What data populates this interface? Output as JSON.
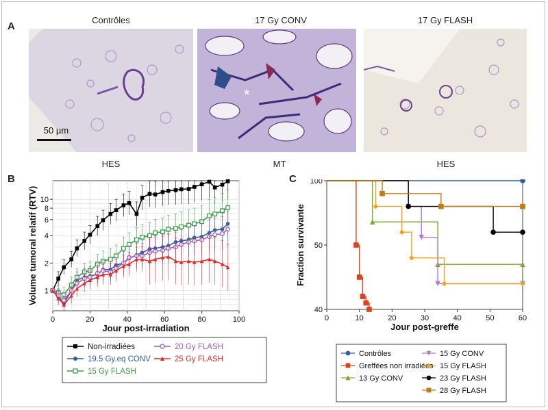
{
  "panel_a": {
    "label": "A",
    "titles": [
      "Contrôles",
      "17 Gy CONV",
      "17 Gy FLASH"
    ],
    "stains": [
      "HES",
      "MT",
      "HES"
    ],
    "scalebar": "50 µm",
    "asterisk": "*"
  },
  "panel_b": {
    "label": "B"
  },
  "panel_c": {
    "label": "C"
  },
  "colors": {
    "tissue_lilac": "#c9bede",
    "tissue_bg": "#e8e4dc",
    "black": "#000000",
    "blue": "#2b5fa7",
    "green": "#3aa047",
    "purple": "#a05cc0",
    "red": "#e02b2b",
    "ctrl_blue": "#2e5ea8",
    "sq_red": "#d9431e",
    "olive": "#7aaa28",
    "lavender": "#b27ad0",
    "orange": "#f0a020",
    "brown": "#c77a12"
  },
  "chart_data": [
    {
      "type": "line",
      "xlabel": "Jour post-irradiation",
      "ylabel": "Volume tumoral relatif (RTV)",
      "xlim": [
        0,
        100
      ],
      "ylim": [
        0.6,
        16
      ],
      "yscale": "log",
      "xticks": [
        "0",
        "20",
        "40",
        "60",
        "80",
        "100"
      ],
      "yticks": [
        "1",
        "2",
        "4",
        "6",
        "8",
        "10"
      ],
      "grid": true,
      "legend_position": "below",
      "series": [
        {
          "name": "Non-irradiées",
          "color": "#000000",
          "marker": "filled-square",
          "x": [
            0,
            3,
            6,
            10,
            13,
            17,
            20,
            24,
            27,
            31,
            34,
            38,
            41,
            45,
            48,
            52,
            55,
            59,
            62,
            66,
            69,
            73,
            76,
            80,
            84,
            87,
            91,
            94
          ],
          "y": [
            1,
            1.35,
            1.8,
            2.2,
            2.9,
            3.5,
            4.1,
            5.1,
            5.9,
            6.9,
            7.6,
            8.6,
            9.1,
            6.9,
            10.4,
            11.5,
            11.3,
            12.0,
            12.4,
            12.6,
            12.9,
            13.0,
            13.7,
            14.6,
            15.6,
            13.5,
            14.5,
            15.8
          ]
        },
        {
          "name": "19.5 Gy.eq CONV",
          "color": "#2b5fa7",
          "marker": "filled-circle",
          "x": [
            0,
            3,
            6,
            10,
            13,
            17,
            20,
            24,
            27,
            31,
            34,
            38,
            41,
            45,
            48,
            52,
            55,
            59,
            62,
            66,
            69,
            73,
            76,
            80,
            84,
            87,
            91,
            94
          ],
          "y": [
            1,
            0.85,
            0.72,
            1.0,
            1.3,
            1.4,
            1.45,
            1.5,
            1.7,
            1.7,
            1.9,
            2.0,
            2.25,
            2.45,
            2.6,
            2.85,
            2.9,
            3.0,
            3.1,
            3.4,
            3.5,
            3.6,
            3.8,
            3.9,
            4.3,
            4.6,
            4.7,
            5.4
          ]
        },
        {
          "name": "15 Gy FLASH",
          "color": "#3aa047",
          "marker": "open-square",
          "x": [
            0,
            3,
            6,
            10,
            13,
            17,
            20,
            24,
            27,
            31,
            34,
            38,
            41,
            45,
            48,
            52,
            55,
            59,
            62,
            66,
            69,
            73,
            76,
            80,
            84,
            87,
            91,
            94
          ],
          "y": [
            1,
            0.95,
            0.9,
            1.15,
            1.4,
            1.6,
            1.65,
            1.95,
            2.1,
            2.2,
            2.4,
            2.9,
            3.2,
            3.6,
            3.85,
            4.0,
            4.3,
            4.4,
            4.7,
            4.8,
            5.0,
            5.2,
            5.4,
            5.7,
            6.6,
            6.9,
            7.5,
            8.1
          ]
        },
        {
          "name": "20 Gy FLASH",
          "color": "#a05cc0",
          "marker": "open-circle",
          "x": [
            0,
            3,
            6,
            10,
            13,
            17,
            20,
            24,
            27,
            31,
            34,
            38,
            41,
            45,
            48,
            52,
            55,
            59,
            62,
            66,
            69,
            73,
            76,
            80,
            84,
            87,
            91,
            94
          ],
          "y": [
            1,
            0.88,
            0.78,
            1.0,
            1.2,
            1.35,
            1.4,
            1.55,
            1.65,
            1.6,
            1.75,
            2.0,
            2.3,
            2.4,
            2.4,
            2.6,
            2.7,
            2.75,
            2.9,
            3.0,
            3.2,
            3.4,
            3.5,
            3.6,
            3.9,
            4.1,
            4.2,
            4.7
          ]
        },
        {
          "name": "25 Gy FLASH",
          "color": "#e02b2b",
          "marker": "triangle",
          "x": [
            0,
            3,
            6,
            10,
            13,
            17,
            20,
            24,
            27,
            31,
            34,
            38,
            41,
            45,
            48,
            52,
            55,
            59,
            62,
            66,
            69,
            73,
            76,
            80,
            84,
            87,
            91,
            94
          ],
          "y": [
            1,
            0.82,
            0.7,
            0.88,
            1.05,
            1.2,
            1.3,
            1.4,
            1.5,
            1.5,
            1.65,
            1.85,
            1.95,
            2.2,
            2.2,
            2.1,
            2.2,
            2.3,
            2.35,
            2.1,
            2.05,
            2.1,
            2.05,
            2.1,
            2.2,
            2.1,
            1.95,
            1.8
          ]
        }
      ]
    },
    {
      "type": "line",
      "step": true,
      "xlabel": "Jour post-greffe",
      "ylabel": "Fraction survivante",
      "xlim": [
        0,
        60
      ],
      "ylim": [
        40,
        100
      ],
      "xticks": [
        "0",
        "10",
        "20",
        "30",
        "40",
        "50",
        "60"
      ],
      "yticks": [
        "40",
        "50",
        "100"
      ],
      "legend_position": "below",
      "series": [
        {
          "name": "Contrôles",
          "color": "#2e5ea8",
          "marker": "circle",
          "x": [
            0,
            60
          ],
          "y": [
            100,
            100
          ]
        },
        {
          "name": "Greffées non irradiées",
          "color": "#d9431e",
          "marker": "square",
          "x": [
            0,
            9,
            10,
            11,
            12,
            13
          ],
          "y": [
            100,
            50,
            45,
            42,
            41,
            40
          ]
        },
        {
          "name": "13 Gy CONV",
          "color": "#7aaa28",
          "marker": "triangle",
          "x": [
            0,
            14,
            34,
            60
          ],
          "y": [
            100,
            68,
            47,
            47
          ]
        },
        {
          "name": "15 Gy CONV",
          "color": "#b27ad0",
          "marker": "down-triangle",
          "x": [
            0,
            25,
            29,
            34,
            60
          ],
          "y": [
            100,
            80,
            56,
            44,
            44
          ]
        },
        {
          "name": "15 Gy FLASH",
          "color": "#f0a020",
          "marker": "diamond",
          "x": [
            0,
            15,
            23,
            26,
            36,
            60
          ],
          "y": [
            100,
            80,
            60,
            48,
            44,
            44
          ]
        },
        {
          "name": "23 Gy FLASH",
          "color": "#000000",
          "marker": "circle",
          "x": [
            0,
            25,
            51,
            60
          ],
          "y": [
            100,
            80,
            60,
            60
          ]
        },
        {
          "name": "28 Gy FLASH",
          "color": "#c77a12",
          "marker": "square",
          "x": [
            0,
            17,
            35,
            60
          ],
          "y": [
            100,
            90,
            80,
            80
          ]
        }
      ]
    }
  ]
}
